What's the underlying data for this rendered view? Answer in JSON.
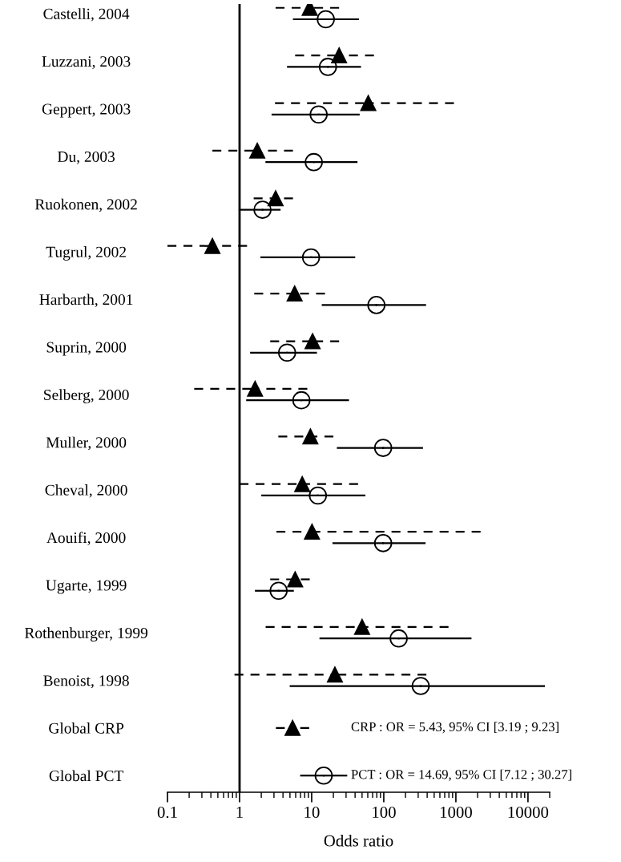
{
  "chart_data": {
    "type": "scatter",
    "xlabel": "Odds ratio",
    "log": "x",
    "grid": false,
    "legend": false,
    "categories": [
      "Castelli, 2004",
      "Luzzani, 2003",
      "Geppert, 2003",
      "Du, 2003",
      "Ruokonen, 2002",
      "Tugrul, 2002",
      "Harbarth, 2001",
      "Suprin, 2000",
      "Selberg, 2000",
      "Muller, 2000",
      "Cheval, 2000",
      "Aouifi, 2000",
      "Ugarte, 1999",
      "Rothenburger, 1999",
      "Benoist, 1998",
      "Global CRP",
      "Global PCT"
    ],
    "orientation": "horizontal",
    "xlim": [
      0.1,
      20000
    ],
    "xticks": [
      0.1,
      1,
      10,
      100,
      1000,
      10000
    ],
    "series": [
      {
        "color": "#000000",
        "marker": "triangle",
        "line_style": "dashed",
        "values": [
          9.4,
          24,
          61,
          1.76,
          3.16,
          0.42,
          5.8,
          10.3,
          1.64,
          9.6,
          7.4,
          10.1,
          5.9,
          50,
          21,
          5.43,
          null
        ],
        "errors": [
          [
            3.16,
            24
          ],
          [
            5.9,
            73
          ],
          [
            3.1,
            940
          ],
          [
            0.42,
            5.5
          ],
          [
            1.57,
            5.5
          ],
          [
            0.1,
            1.27
          ],
          [
            1.6,
            15.3
          ],
          [
            2.66,
            24
          ],
          [
            0.235,
            8.7
          ],
          [
            3.45,
            20
          ],
          [
            1.0,
            44
          ],
          [
            3.25,
            2200
          ],
          [
            2.66,
            9.4
          ],
          [
            2.3,
            790
          ],
          [
            0.85,
            390
          ],
          [
            3.19,
            9.23
          ],
          null
        ]
      },
      {
        "color": "#000000",
        "marker": "circle",
        "line_style": "solid",
        "values": [
          15.7,
          16.8,
          12.5,
          10.7,
          2.08,
          9.8,
          79,
          4.56,
          7.2,
          98,
          12.2,
          98,
          3.48,
          161,
          325,
          null,
          14.69
        ],
        "errors": [
          [
            5.66,
            44
          ],
          [
            4.68,
            47
          ],
          [
            2.86,
            45
          ],
          [
            2.35,
            42
          ],
          [
            1.0,
            3.6
          ],
          [
            2.0,
            39
          ],
          [
            14.2,
            375
          ],
          [
            1.44,
            11.5
          ],
          [
            1.27,
            32
          ],
          [
            23,
            340
          ],
          [
            2.06,
            54
          ],
          [
            20,
            369
          ],
          [
            1.68,
            5.5
          ],
          [
            13.2,
            1600
          ],
          [
            5.1,
            16700
          ],
          null,
          [
            7.12,
            30.27
          ]
        ]
      }
    ],
    "ref_lines": [
      {
        "axis": "x",
        "value": 1,
        "color": "#000000",
        "line_style": "solid"
      }
    ],
    "annotations": [
      "CRP : OR = 5.43, 95% CI [3.19 ; 9.23]",
      "PCT : OR = 14.69, 95% CI [7.12 ; 30.27]"
    ]
  }
}
